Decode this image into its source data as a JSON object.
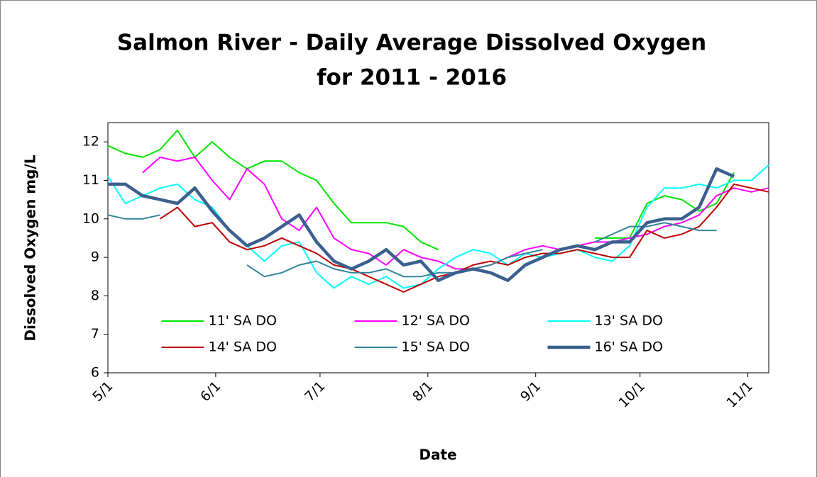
{
  "chart_data": {
    "type": "line",
    "title": [
      "Salmon River - Daily Average Dissolved Oxygen",
      "for 2011 - 2016"
    ],
    "xlabel": "Date",
    "ylabel": "Dissolved Oxygen mg/L",
    "x": [
      "5/1",
      "5/6",
      "5/11",
      "5/16",
      "5/21",
      "5/26",
      "5/31",
      "6/5",
      "6/10",
      "6/15",
      "6/20",
      "6/25",
      "6/30",
      "7/5",
      "7/10",
      "7/15",
      "7/20",
      "7/25",
      "7/30",
      "8/4",
      "8/9",
      "8/14",
      "8/19",
      "8/24",
      "8/29",
      "9/3",
      "9/8",
      "9/13",
      "9/18",
      "9/23",
      "9/28",
      "10/3",
      "10/8",
      "10/13",
      "10/18",
      "10/23",
      "10/28",
      "11/2",
      "11/7"
    ],
    "xlim": [
      "5/1",
      "11/7"
    ],
    "xticks": [
      "5/1",
      "6/1",
      "7/1",
      "8/1",
      "9/1",
      "10/1",
      "11/1"
    ],
    "ylim": [
      6,
      12.5
    ],
    "yticks": [
      6,
      7,
      8,
      9,
      10,
      11,
      12
    ],
    "grid": false,
    "legend": "lower center",
    "series": [
      {
        "name": "11' SA DO",
        "color": "#00e600",
        "width": 2,
        "values": [
          11.9,
          11.7,
          11.6,
          11.8,
          12.3,
          11.6,
          12.0,
          11.6,
          11.3,
          11.5,
          11.5,
          11.2,
          11.0,
          10.4,
          9.9,
          9.9,
          9.9,
          9.8,
          9.4,
          9.2,
          null,
          null,
          null,
          null,
          null,
          null,
          null,
          null,
          9.5,
          9.5,
          9.5,
          10.4,
          10.6,
          10.5,
          10.2,
          10.4,
          11.2,
          null,
          null
        ]
      },
      {
        "name": "12' SA DO",
        "color": "#ff00ff",
        "width": 2,
        "values": [
          11.3,
          null,
          11.2,
          11.6,
          11.5,
          11.6,
          11.0,
          10.5,
          11.3,
          10.9,
          10.0,
          9.7,
          10.3,
          9.5,
          9.2,
          9.1,
          8.8,
          9.2,
          9.0,
          8.9,
          8.7,
          8.7,
          8.8,
          9.0,
          9.2,
          9.3,
          9.2,
          9.3,
          9.4,
          9.4,
          9.5,
          9.6,
          9.8,
          9.9,
          10.1,
          10.6,
          10.8,
          10.7,
          10.8
        ]
      },
      {
        "name": "13' SA DO",
        "color": "#00ffff",
        "width": 2,
        "values": [
          11.1,
          10.4,
          10.6,
          10.8,
          10.9,
          10.5,
          10.3,
          9.7,
          9.3,
          8.9,
          9.3,
          9.4,
          8.6,
          8.2,
          8.5,
          8.3,
          8.5,
          8.2,
          8.3,
          8.7,
          9.0,
          9.2,
          9.1,
          8.8,
          9.1,
          9.0,
          9.1,
          9.2,
          9.0,
          8.9,
          9.3,
          10.3,
          10.8,
          10.8,
          10.9,
          10.8,
          11.0,
          11.0,
          11.4
        ]
      },
      {
        "name": "14' SA DO",
        "color": "#c00000",
        "width": 2,
        "values": [
          null,
          null,
          null,
          10.0,
          10.3,
          9.8,
          9.9,
          9.4,
          9.2,
          9.3,
          9.5,
          9.3,
          9.1,
          8.8,
          8.7,
          8.5,
          8.3,
          8.1,
          8.3,
          8.5,
          8.6,
          8.8,
          8.9,
          8.8,
          9.0,
          9.1,
          9.1,
          9.2,
          9.1,
          9.0,
          9.0,
          9.7,
          9.5,
          9.6,
          9.8,
          10.3,
          10.9,
          10.8,
          10.7
        ]
      },
      {
        "name": "15' SA DO",
        "color": "#31849b",
        "width": 2,
        "values": [
          10.1,
          10.0,
          10.0,
          10.1,
          null,
          null,
          null,
          null,
          8.8,
          8.5,
          8.6,
          8.8,
          8.9,
          8.7,
          8.6,
          8.6,
          8.7,
          8.5,
          8.5,
          8.6,
          8.6,
          8.7,
          8.8,
          9.0,
          9.1,
          9.2,
          null,
          null,
          9.4,
          9.6,
          9.8,
          9.8,
          9.9,
          9.8,
          9.7,
          9.7,
          null,
          null,
          null
        ]
      },
      {
        "name": "16' SA DO",
        "color": "#3b5f8e",
        "width": 4.5,
        "values": [
          10.9,
          10.9,
          10.6,
          10.5,
          10.4,
          10.8,
          10.2,
          9.7,
          9.3,
          9.5,
          9.8,
          10.1,
          9.4,
          8.9,
          8.7,
          8.9,
          9.2,
          8.8,
          8.9,
          8.4,
          8.6,
          8.7,
          8.6,
          8.4,
          8.8,
          9.0,
          9.2,
          9.3,
          9.2,
          9.4,
          9.4,
          9.9,
          10.0,
          10.0,
          10.3,
          11.3,
          11.1,
          null,
          null
        ]
      }
    ]
  }
}
